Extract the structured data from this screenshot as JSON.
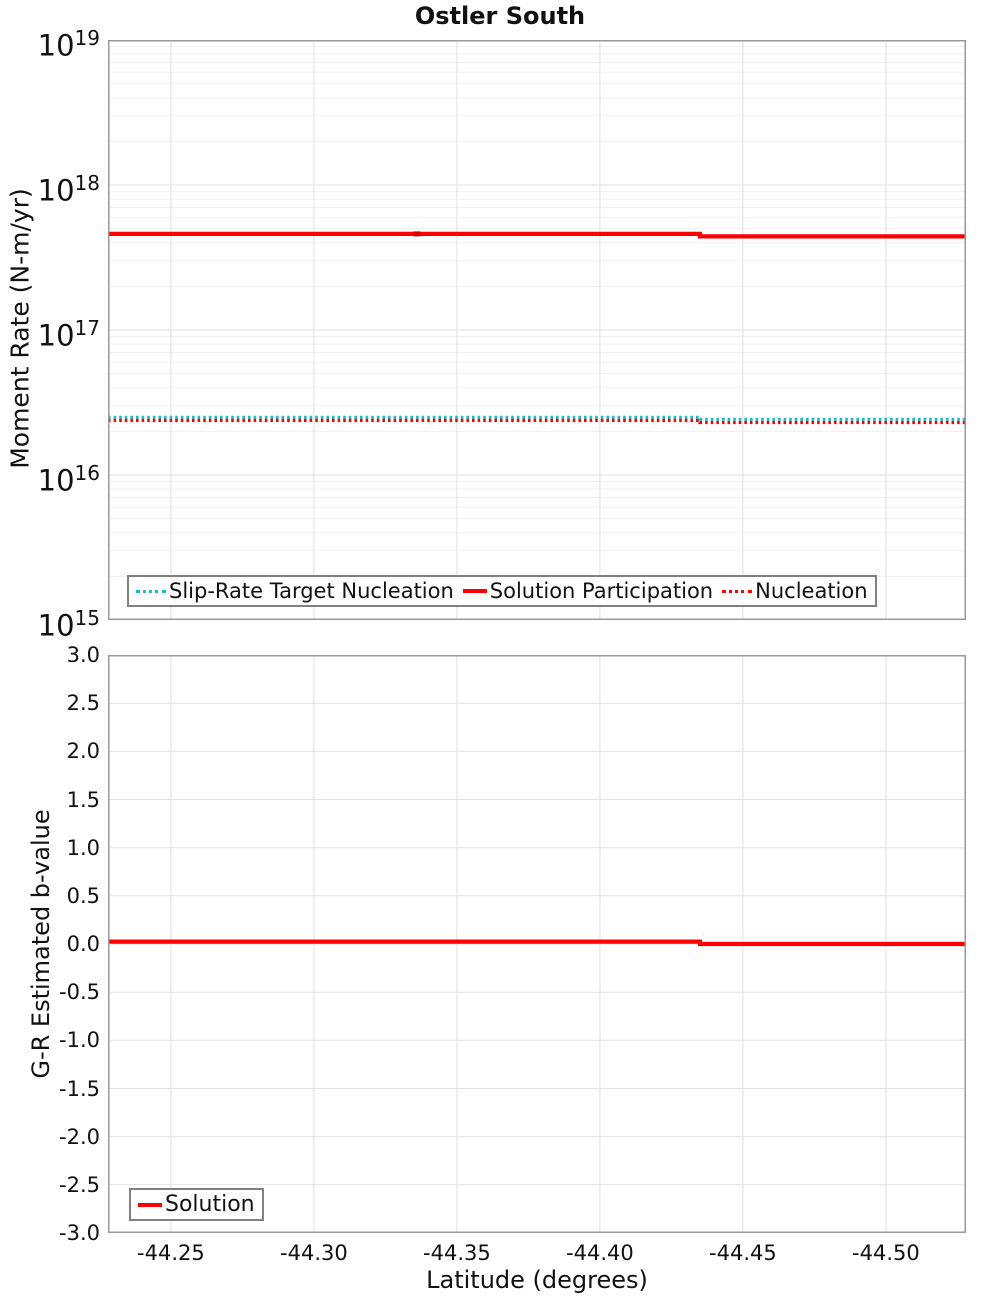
{
  "chart_data": [
    {
      "type": "line",
      "title": "Ostler South",
      "ylabel": "Moment Rate (N-m/yr)",
      "yscale": "log",
      "ylim": [
        1000000000000000.0,
        1e+19
      ],
      "ytick_exponents": [
        19,
        18,
        17,
        16,
        15
      ],
      "xlim": [
        -44.228,
        -44.528
      ],
      "xticks": [
        -44.25,
        -44.3,
        -44.35,
        -44.4,
        -44.45,
        -44.5
      ],
      "xtick_labels": [],
      "grid": true,
      "legend_position": "bottom-left",
      "legend": [
        {
          "label": "Slip-Rate Target Nucleation",
          "color": "#17becf",
          "dash": "dotted"
        },
        {
          "label": "Solution Participation",
          "color": "#ff0000",
          "dash": "solid"
        },
        {
          "label": "Nucleation",
          "color": "#ff0000",
          "dash": "dotted"
        }
      ],
      "series": [
        {
          "name": "Slip-Rate Target Nucleation",
          "color": "#17becf",
          "dash": "dotted",
          "width": 3.2,
          "x": [
            -44.228,
            -44.435,
            -44.435,
            -44.528
          ],
          "y": [
            2.5e+16,
            2.5e+16,
            2.42e+16,
            2.42e+16
          ]
        },
        {
          "name": "Solution Participation",
          "color": "#ff0000",
          "dash": "solid",
          "width": 4.2,
          "x": [
            -44.228,
            -44.435,
            -44.435,
            -44.528
          ],
          "y": [
            4.6e+17,
            4.6e+17,
            4.42e+17,
            4.42e+17
          ],
          "marker_points": [
            {
              "x": -44.336,
              "y": 4.6e+17
            }
          ],
          "marker_color": "#d40000"
        },
        {
          "name": "Nucleation",
          "color": "#ff0000",
          "dash": "dotted",
          "width": 3.2,
          "x": [
            -44.228,
            -44.435,
            -44.435,
            -44.528
          ],
          "y": [
            2.38e+16,
            2.38e+16,
            2.3e+16,
            2.3e+16
          ]
        }
      ]
    },
    {
      "type": "line",
      "ylabel": "G-R Estimated b-value",
      "xlabel": "Latitude (degrees)",
      "yscale": "linear",
      "ylim": [
        -3.0,
        3.0
      ],
      "yticks": [
        3.0,
        2.5,
        2.0,
        1.5,
        1.0,
        0.5,
        0.0,
        -0.5,
        -1.0,
        -1.5,
        -2.0,
        -2.5,
        -3.0
      ],
      "ytick_labels": [
        "3.0",
        "2.5",
        "2.0",
        "1.5",
        "1.0",
        "0.5",
        "0.0",
        "-0.5",
        "-1.0",
        "-1.5",
        "-2.0",
        "-2.5",
        "-3.0"
      ],
      "xlim": [
        -44.228,
        -44.528
      ],
      "xticks": [
        -44.25,
        -44.3,
        -44.35,
        -44.4,
        -44.45,
        -44.5
      ],
      "xtick_labels": [
        "-44.25",
        "-44.30",
        "-44.35",
        "-44.40",
        "-44.45",
        "-44.50"
      ],
      "grid": true,
      "legend_position": "bottom-left",
      "legend": [
        {
          "label": "Solution",
          "color": "#ff0000",
          "dash": "solid"
        }
      ],
      "series": [
        {
          "name": "Solution",
          "color": "#ff0000",
          "dash": "solid",
          "width": 4.2,
          "x": [
            -44.228,
            -44.435,
            -44.435,
            -44.528
          ],
          "y": [
            0.025,
            0.025,
            0.0,
            0.0
          ]
        }
      ]
    }
  ],
  "colors": {
    "series_red": "#ff0000",
    "series_teal": "#17becf",
    "grid_minor": "#f0f0f0",
    "grid_major": "#e2e2e2",
    "plot_border": "#999999"
  }
}
